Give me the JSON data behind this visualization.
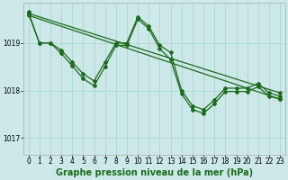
{
  "background_color": "#cce8e8",
  "grid_color": "#a8d0d0",
  "line_color": "#1a6b1a",
  "xlabel": "Graphe pression niveau de la mer (hPa)",
  "xlabel_fontsize": 7,
  "tick_fontsize": 5.5,
  "ylim": [
    1016.65,
    1019.85
  ],
  "xlim": [
    -0.5,
    23.5
  ],
  "yticks": [
    1017,
    1018,
    1019
  ],
  "xticks": [
    0,
    1,
    2,
    3,
    4,
    5,
    6,
    7,
    8,
    9,
    10,
    11,
    12,
    13,
    14,
    15,
    16,
    17,
    18,
    19,
    20,
    21,
    22,
    23
  ],
  "s1x": [
    0,
    1,
    2,
    3,
    4,
    5,
    6,
    7,
    8,
    9,
    10,
    11,
    12,
    13,
    14,
    15,
    16,
    17,
    18,
    19,
    20,
    21,
    22,
    23
  ],
  "s1y": [
    1019.65,
    1019.0,
    1019.0,
    1018.85,
    1018.6,
    1018.35,
    1018.2,
    1018.6,
    1019.0,
    1019.0,
    1019.55,
    1019.35,
    1018.95,
    1018.8,
    1018.0,
    1017.68,
    1017.6,
    1017.8,
    1018.05,
    1018.05,
    1018.05,
    1018.15,
    1017.95,
    1017.88
  ],
  "s2x": [
    0,
    1,
    2,
    3,
    4,
    5,
    6,
    7,
    8,
    9,
    10,
    11,
    12,
    13,
    14,
    15,
    16,
    17,
    18,
    19,
    20,
    21,
    22,
    23
  ],
  "s2y": [
    1019.62,
    1019.0,
    1019.0,
    1018.78,
    1018.52,
    1018.25,
    1018.1,
    1018.5,
    1018.95,
    1018.95,
    1019.5,
    1019.3,
    1018.88,
    1018.65,
    1017.93,
    1017.6,
    1017.52,
    1017.72,
    1017.98,
    1017.98,
    1017.98,
    1018.08,
    1017.88,
    1017.82
  ],
  "s3x": [
    0,
    23
  ],
  "s3y": [
    1019.62,
    1017.95
  ],
  "s4x": [
    0,
    23
  ],
  "s4y": [
    1019.58,
    1017.82
  ]
}
